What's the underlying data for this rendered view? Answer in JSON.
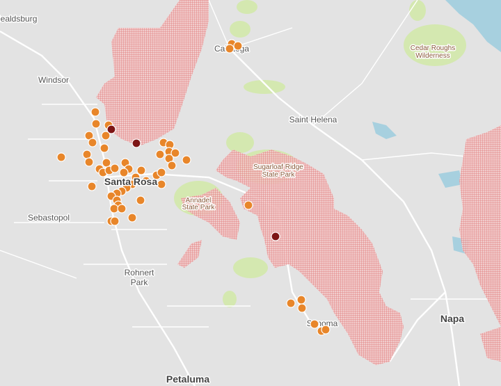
{
  "labels": [
    {
      "lines": [
        "Healdsburg"
      ]
    },
    {
      "lines": [
        "Windsor"
      ]
    },
    {
      "lines": [
        "Calistoga"
      ]
    },
    {
      "lines": [
        "Cedar Roughs",
        "Wilderness"
      ]
    },
    {
      "lines": [
        "Saint Helena"
      ]
    },
    {
      "lines": [
        "Sugarloaf Ridge",
        "State Park"
      ]
    },
    {
      "lines": [
        "Annadel",
        "State Park"
      ]
    },
    {
      "lines": [
        "Santa Rosa"
      ]
    },
    {
      "lines": [
        "Sebastopol"
      ]
    },
    {
      "lines": [
        "Rohnert",
        "Park"
      ]
    },
    {
      "lines": [
        "Sonoma"
      ]
    },
    {
      "lines": [
        "Napa"
      ]
    },
    {
      "lines": [
        "Petaluma"
      ]
    }
  ]
}
